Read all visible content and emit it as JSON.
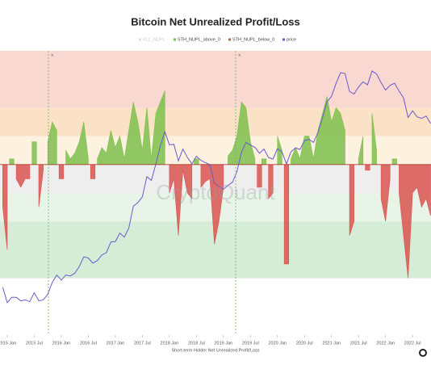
{
  "chart_data": {
    "type": "area",
    "title": "Bitcoin Net Unrealized Profit/Loss",
    "x_label": "Short-term Holder Net Unrealized Profit/Loss",
    "watermark": "CryptoQuant",
    "x": [
      "2014 Dec",
      "2015 Jan",
      "2015 Feb",
      "2015 Mar",
      "2015 Apr",
      "2015 May",
      "2015 Jun",
      "2015 Jul",
      "2015 Aug",
      "2015 Sep",
      "2015 Oct",
      "2015 Nov",
      "2015 Dec",
      "2016 Jan",
      "2016 Feb",
      "2016 Mar",
      "2016 Apr",
      "2016 May",
      "2016 Jun",
      "2016 Jul",
      "2016 Aug",
      "2016 Sep",
      "2016 Oct",
      "2016 Nov",
      "2016 Dec",
      "2017 Jan",
      "2017 Feb",
      "2017 Mar",
      "2017 Apr",
      "2017 May",
      "2017 Jun",
      "2017 Jul",
      "2017 Aug",
      "2017 Sep",
      "2017 Oct",
      "2017 Nov",
      "2017 Dec",
      "2018 Jan",
      "2018 Feb",
      "2018 Mar",
      "2018 Apr",
      "2018 May",
      "2018 Jun",
      "2018 Jul",
      "2018 Aug",
      "2018 Sep",
      "2018 Oct",
      "2018 Nov",
      "2018 Dec",
      "2019 Jan",
      "2019 Feb",
      "2019 Mar",
      "2019 Apr",
      "2019 May",
      "2019 Jun",
      "2019 Jul",
      "2019 Aug",
      "2019 Sep",
      "2019 Oct",
      "2019 Nov",
      "2019 Dec",
      "2020 Jan",
      "2020 Feb",
      "2020 Mar",
      "2020 Apr",
      "2020 May",
      "2020 Jun",
      "2020 Jul",
      "2020 Aug",
      "2020 Sep",
      "2020 Oct",
      "2020 Nov",
      "2020 Dec",
      "2021 Jan",
      "2021 Feb",
      "2021 Mar",
      "2021 Apr",
      "2021 May",
      "2021 Jun",
      "2021 Jul",
      "2021 Aug",
      "2021 Sep",
      "2021 Oct",
      "2021 Nov",
      "2021 Dec",
      "2022 Jan",
      "2022 Feb",
      "2022 Mar",
      "2022 Apr",
      "2022 May",
      "2022 Jun",
      "2022 Jul",
      "2022 Aug",
      "2022 Sep",
      "2022 Oct",
      "2022 Nov"
    ],
    "xticks": [
      "2015 Jan",
      "2015 Jul",
      "2016 Jan",
      "2016 Jul",
      "2017 Jan",
      "2017 Jul",
      "2018 Jan",
      "2018 Jul",
      "2019 Jan",
      "2019 Jul",
      "2020 Jan",
      "2020 Jul",
      "2021 Jan",
      "2021 Jul",
      "2022 Jan",
      "2022 Jul"
    ],
    "hidden_series": [
      {
        "name": "ALL_NUPL",
        "color": "#c8c8c8"
      }
    ],
    "series": [
      {
        "name": "STH_NUPL_above_0",
        "color": "#7cbf4e",
        "values": [
          null,
          null,
          0.02,
          null,
          null,
          null,
          null,
          0.08,
          null,
          null,
          0.08,
          0.15,
          0.12,
          null,
          0.05,
          0.02,
          0.04,
          0.08,
          0.15,
          0.02,
          null,
          0.02,
          0.06,
          0.04,
          0.12,
          0.06,
          0.1,
          0.02,
          0.12,
          0.22,
          0.15,
          0.05,
          0.2,
          0.02,
          0.18,
          0.22,
          0.26,
          null,
          null,
          null,
          null,
          null,
          null,
          0.02,
          null,
          null,
          null,
          null,
          null,
          null,
          0.03,
          0.05,
          0.1,
          0.22,
          0.2,
          0.08,
          0.02,
          null,
          0.02,
          null,
          null,
          0.1,
          0.05,
          null,
          0.02,
          0.06,
          0.02,
          0.1,
          0.1,
          0.02,
          0.12,
          0.18,
          0.24,
          0.15,
          0.2,
          0.18,
          0.12,
          null,
          null,
          0.02,
          0.1,
          null,
          0.18,
          0.05,
          null,
          null,
          null,
          0.02,
          null,
          null,
          null,
          null,
          null,
          null,
          null,
          null
        ]
      },
      {
        "name": "STH_NUPL_below_0",
        "color": "#d9534f",
        "values": [
          -0.15,
          -0.3,
          null,
          -0.05,
          -0.08,
          -0.05,
          -0.05,
          null,
          -0.15,
          -0.02,
          null,
          null,
          null,
          -0.05,
          null,
          null,
          null,
          null,
          null,
          null,
          -0.05,
          null,
          null,
          null,
          null,
          null,
          null,
          null,
          null,
          null,
          null,
          null,
          null,
          null,
          null,
          null,
          null,
          -0.1,
          -0.05,
          -0.25,
          -0.02,
          -0.1,
          -0.12,
          null,
          -0.08,
          -0.06,
          -0.05,
          -0.28,
          -0.2,
          -0.08,
          null,
          null,
          null,
          null,
          null,
          null,
          null,
          -0.08,
          null,
          -0.12,
          -0.1,
          null,
          null,
          -0.35,
          null,
          null,
          null,
          null,
          null,
          null,
          null,
          null,
          null,
          null,
          null,
          null,
          null,
          -0.25,
          -0.2,
          null,
          null,
          -0.02,
          null,
          null,
          -0.12,
          -0.2,
          -0.05,
          null,
          -0.1,
          -0.25,
          -0.4,
          -0.1,
          -0.08,
          -0.15,
          -0.12,
          -0.18
        ]
      },
      {
        "name": "price",
        "color": "#6a5acd",
        "axis": "y2",
        "values": [
          320,
          220,
          250,
          250,
          230,
          235,
          225,
          280,
          230,
          235,
          270,
          360,
          430,
          380,
          430,
          420,
          450,
          530,
          670,
          650,
          575,
          610,
          700,
          740,
          960,
          970,
          1190,
          1080,
          1350,
          2300,
          2500,
          2880,
          4700,
          4300,
          6400,
          10000,
          14000,
          10200,
          10300,
          6900,
          9200,
          7500,
          6400,
          7700,
          7000,
          6600,
          6300,
          4000,
          3700,
          3450,
          3800,
          4100,
          5300,
          8500,
          10800,
          10100,
          9600,
          8300,
          9200,
          7500,
          7200,
          9300,
          8600,
          6400,
          8600,
          9450,
          9100,
          11300,
          11650,
          10800,
          13800,
          19700,
          29000,
          33100,
          45200,
          58800,
          57700,
          37300,
          35000,
          41500,
          47100,
          43800,
          61300,
          57000,
          46300,
          38500,
          43200,
          45500,
          37700,
          31800,
          19800,
          23300,
          20100,
          19400,
          20500,
          17100
        ]
      }
    ],
    "ylim": [
      -0.6,
      0.4
    ],
    "y2lim": [
      100,
      100000
    ],
    "y2_log": true,
    "bands": [
      {
        "from": 0.2,
        "to": 0.4,
        "color": "#f8d8d0"
      },
      {
        "from": 0.1,
        "to": 0.2,
        "color": "#fbe2c6"
      },
      {
        "from": 0,
        "to": 0.1,
        "color": "#fdf2df"
      },
      {
        "from": -0.1,
        "to": 0,
        "color": "#eeeeef"
      },
      {
        "from": -0.2,
        "to": -0.1,
        "color": "#e8f4e8"
      },
      {
        "from": -0.4,
        "to": -0.2,
        "color": "#d5edd6"
      }
    ]
  }
}
